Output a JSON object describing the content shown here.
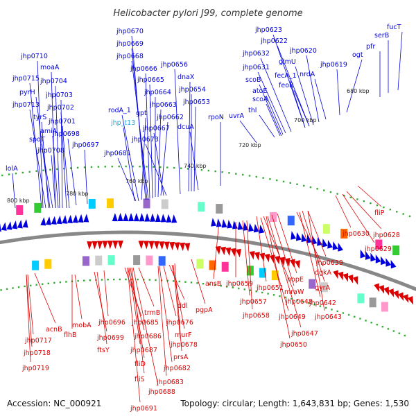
{
  "title": "Helicobacter pylori J99, complete genome",
  "accession": "Accession: NC_000921",
  "topology": "Topology: circular; Length: 1,643,831 bp; Genes: 1,530",
  "colors": {
    "forward": "#0000dd",
    "reverse": "#dd0000",
    "highlight": "#22aadd",
    "backbone": "#888888"
  },
  "ticks": [
    "680 kbp",
    "700 kbp",
    "720 kbp",
    "740 kbp",
    "760 kbp",
    "780 kbp",
    "800 kbp"
  ],
  "forward_labels": [
    "jhp0710",
    "jhp0715",
    "jhp0713",
    "pyrH",
    "moaA",
    "jhp0704",
    "jhp0703",
    "tyrS",
    "jhp0702",
    "spoT",
    "amiA",
    "jhp0701",
    "jhp0708",
    "jhp0698",
    "jhp0697",
    "lolA",
    "jhp0670",
    "jhp0669",
    "jhp0668",
    "jhp0666",
    "jhp0665",
    "jhp0664",
    "jhp0663",
    "jhp0662",
    "jhp0667",
    "jhp0673",
    "rodA_1",
    "jhp_t13",
    "gpt",
    "jhp0681",
    "jhp0656",
    "dnaX",
    "jhp0654",
    "jhp0653",
    "rpoN",
    "dcuA",
    "jhp0623",
    "jhp0622",
    "jhp0632",
    "glmU",
    "jhp0620",
    "jhp0631",
    "fecA_1",
    "scoB",
    "nrdA",
    "jhp0619",
    "ogt",
    "feoB",
    "atoE",
    "scoA",
    "thl",
    "uvrA",
    "fucT",
    "serB",
    "pfr"
  ],
  "reverse_labels": [
    "ansB",
    "jhp0659",
    "jhp0657",
    "jhp0658",
    "jhp0651",
    "mraW",
    "hopE",
    "jhp0648",
    "jhp0649",
    "jhp0647",
    "jhp0650",
    "dgkA",
    "gyrA",
    "jhp0642",
    "jhp0643",
    "jhp0639",
    "jhp0630",
    "jhp0628",
    "jhp0629",
    "fliP",
    "acnB",
    "jhp0717",
    "jhp0718",
    "jhp0719",
    "flhB",
    "mobA",
    "jhp0699",
    "ftsY",
    "jhp0696",
    "trmB",
    "jhp0685",
    "jhp0686",
    "jhp0687",
    "fliD",
    "fliS",
    "jhp0688",
    "jhp0691",
    "jhp0676",
    "ddl",
    "murF",
    "jhp0678",
    "prsA",
    "jhp0682",
    "jhp0683",
    "pgpA"
  ]
}
